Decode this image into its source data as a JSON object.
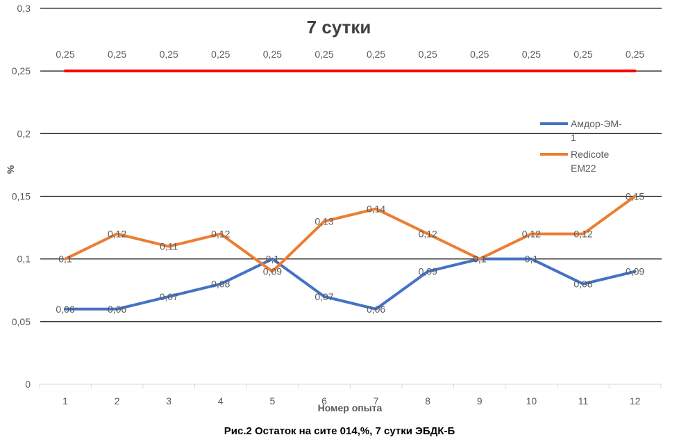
{
  "chart_data": {
    "type": "line",
    "title": "7 сутки",
    "xlabel": "Номер опыта",
    "ylabel": "%",
    "categories": [
      "1",
      "2",
      "3",
      "4",
      "5",
      "6",
      "7",
      "8",
      "9",
      "10",
      "11",
      "12"
    ],
    "ylim": [
      0,
      0.3
    ],
    "yticks": [
      "0",
      "0,05",
      "0,1",
      "0,15",
      "0,2",
      "0,25",
      "0,3"
    ],
    "yticks_values": [
      0,
      0.05,
      0.1,
      0.15,
      0.2,
      0.25,
      0.3
    ],
    "grid": true,
    "legend_position": "right",
    "series": [
      {
        "name": "",
        "color": "#FF0000",
        "values": [
          0.25,
          0.25,
          0.25,
          0.25,
          0.25,
          0.25,
          0.25,
          0.25,
          0.25,
          0.25,
          0.25,
          0.25
        ],
        "labels": [
          "0,25",
          "0,25",
          "0,25",
          "0,25",
          "0,25",
          "0,25",
          "0,25",
          "0,25",
          "0,25",
          "0,25",
          "0,25",
          "0,25"
        ],
        "label_position": "above"
      },
      {
        "name": "Амдор-ЭМ-1",
        "legend_lines": [
          "Амдор-ЭМ-",
          "1"
        ],
        "color": "#4472C4",
        "values": [
          0.06,
          0.06,
          0.07,
          0.08,
          0.1,
          0.07,
          0.06,
          0.09,
          0.1,
          0.1,
          0.08,
          0.09
        ],
        "labels": [
          "0,06",
          "0,06",
          "0,07",
          "0,08",
          "0,1",
          "0,07",
          "0,06",
          "0,09",
          "0,1",
          "0,1",
          "0,08",
          "0,09"
        ],
        "label_position": "center"
      },
      {
        "name": "Redicote EM22",
        "legend_lines": [
          "Redicote",
          "EM22"
        ],
        "color": "#ED7D31",
        "values": [
          0.1,
          0.12,
          0.11,
          0.12,
          0.09,
          0.13,
          0.14,
          0.12,
          0.1,
          0.12,
          0.12,
          0.15
        ],
        "labels": [
          "0,1",
          "0,12",
          "0,11",
          "0,12",
          "0,09",
          "0,13",
          "0,14",
          "0,12",
          "0,1",
          "0,12",
          "0,12",
          "0,15"
        ],
        "label_position": "center"
      }
    ]
  },
  "caption": "Рис.2 Остаток на сите 014,%, 7 сутки ЭБДК-Б"
}
